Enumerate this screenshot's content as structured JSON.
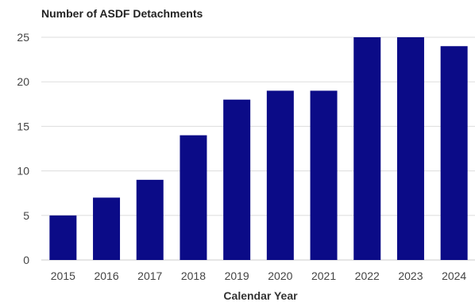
{
  "chart_data": {
    "type": "bar",
    "title": "Number of ASDF Detachments",
    "xlabel": "Calendar Year",
    "ylabel": "",
    "categories": [
      "2015",
      "2016",
      "2017",
      "2018",
      "2019",
      "2020",
      "2021",
      "2022",
      "2023",
      "2024"
    ],
    "values": [
      5,
      7,
      9,
      14,
      18,
      19,
      19,
      25,
      25,
      24
    ],
    "ylim": [
      0,
      25
    ],
    "yticks": [
      0,
      5,
      10,
      15,
      20,
      25
    ],
    "grid": true,
    "legend": "none",
    "bar_color": "#0b0b87"
  }
}
